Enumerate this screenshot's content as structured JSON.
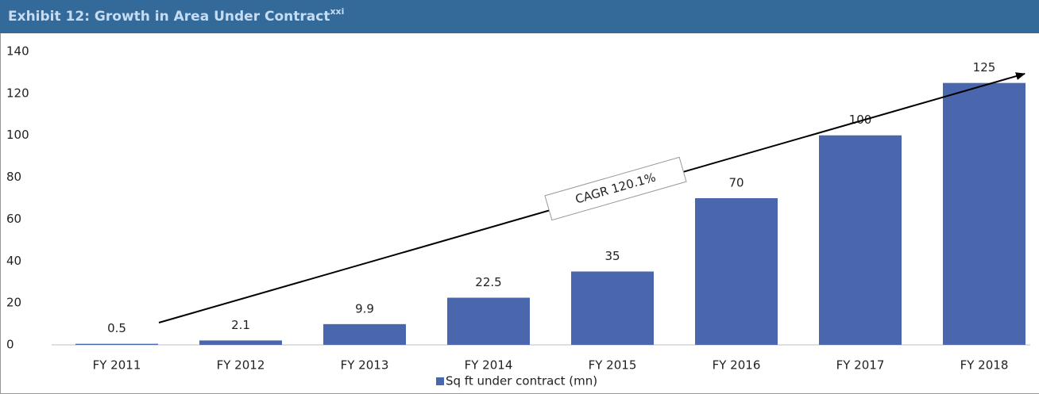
{
  "chart_data": {
    "type": "bar",
    "title": "Exhibit 12: Growth in Area Under Contract",
    "title_superscript": "xxi",
    "categories": [
      "FY 2011",
      "FY 2012",
      "FY 2013",
      "FY 2014",
      "FY 2015",
      "FY 2016",
      "FY 2017",
      "FY 2018"
    ],
    "series": [
      {
        "name": "Sq ft under contract (mn)",
        "color": "#4a66ad",
        "values": [
          0.5,
          2.1,
          9.9,
          22.5,
          35,
          70,
          100,
          125
        ]
      }
    ],
    "ylim": [
      0,
      140
    ],
    "yticks": [
      0,
      20,
      40,
      60,
      80,
      100,
      120,
      140
    ],
    "annotation": "CAGR 120.1%",
    "legend": "bottom"
  }
}
